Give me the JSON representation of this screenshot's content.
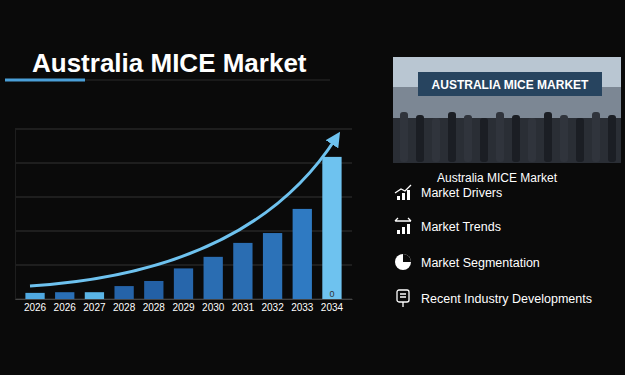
{
  "chart_data": {
    "type": "bar",
    "title": "Australia MICE Market",
    "categories": [
      "2026",
      "2026",
      "2027",
      "2028",
      "2028",
      "2029",
      "2030",
      "2031",
      "2032",
      "2033",
      "2034"
    ],
    "values": [
      0.18,
      0.2,
      0.2,
      0.38,
      0.53,
      0.9,
      1.24,
      1.65,
      1.94,
      2.65,
      4.18
    ],
    "colors": [
      "#4fa8e0",
      "#2a6fb5",
      "#5ab4e6",
      "#2563a8",
      "#2360a5",
      "#2766ab",
      "#2a6db2",
      "#2a6db2",
      "#2c72b8",
      "#2f7ac2",
      "#6ec2ef"
    ],
    "ylim": [
      0,
      5
    ],
    "yticks": [
      0,
      1,
      2,
      3,
      4,
      5
    ],
    "grid": true,
    "tick_labels": "x",
    "annotation": "0"
  },
  "panel": {
    "banner": "AUSTRALIA MICE MARKET",
    "caption": "Australia MICE Market",
    "items": [
      "Market Drivers",
      "Market Trends",
      "Market Segmentation",
      "Recent Industry Developments"
    ]
  }
}
